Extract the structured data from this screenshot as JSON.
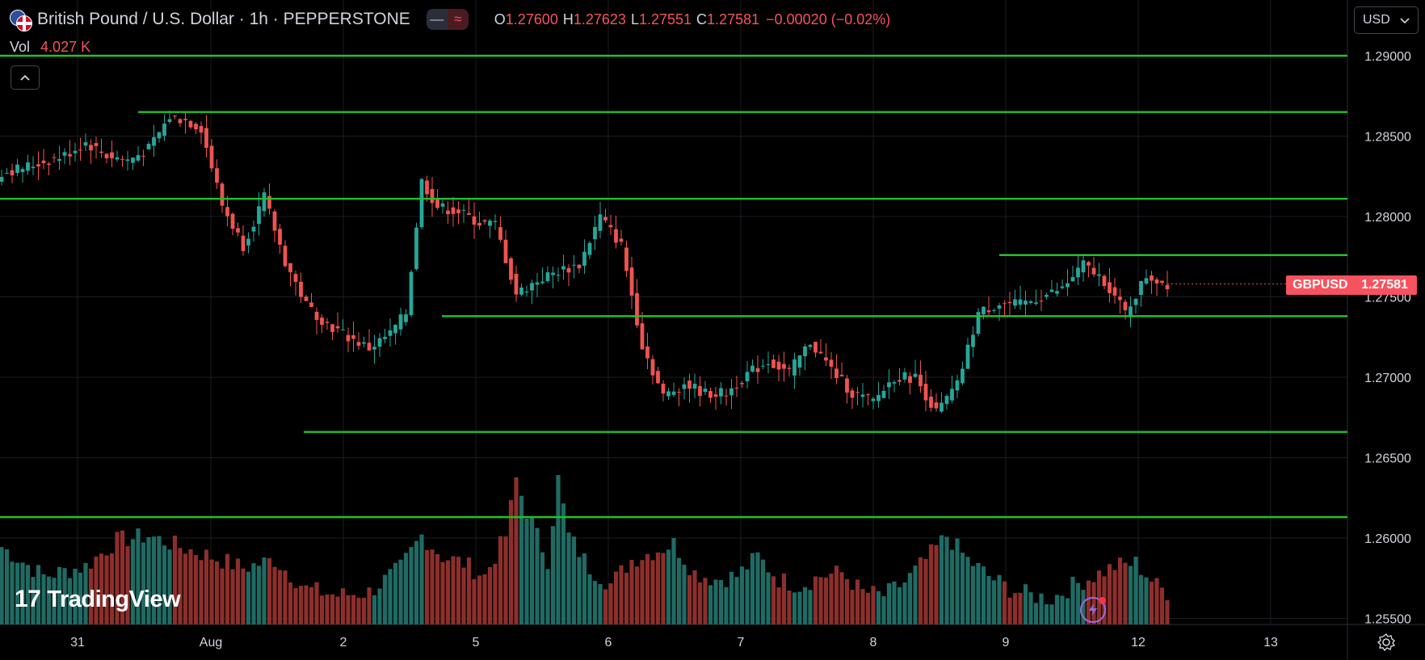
{
  "header": {
    "title": "British Pound / U.S. Dollar · 1h · PEPPERSTONE",
    "toggle_a_icon": "minus-icon",
    "toggle_b_icon": "approx-icon",
    "toggle_b_glyph": "≈",
    "ohlc": {
      "o_label": "O",
      "o_value": "1.27600",
      "h_label": "H",
      "h_value": "1.27623",
      "l_label": "L",
      "l_value": "1.27551",
      "c_label": "C",
      "c_value": "1.27581",
      "change": "−0.00020 (−0.02%)"
    },
    "volume_label": "Vol",
    "volume_value": "4.027 K"
  },
  "currency_selector": {
    "value": "USD"
  },
  "symbol_tag": {
    "symbol": "GBPUSD",
    "price": "1.27581"
  },
  "logo": {
    "text": "TradingView",
    "mark": "17"
  },
  "colors": {
    "up": "#26a69a",
    "down": "#ef5350",
    "vol_up": "#1f6b64",
    "vol_down": "#8c2f2c",
    "level_line": "#22c02c",
    "grid": "#1a1d24",
    "axis_text": "#d1d4dc",
    "price_tag": "#f7525f",
    "flash": "#9c6ade"
  },
  "chart_data": {
    "type": "candlestick",
    "symbol": "GBPUSD",
    "interval": "1h",
    "ylim": [
      1.2545,
      1.2915
    ],
    "y_ticks": [
      "1.29000",
      "1.28500",
      "1.28000",
      "1.27500",
      "1.27000",
      "1.26500",
      "1.26000",
      "1.25500"
    ],
    "x_ticks": [
      "31",
      "Aug",
      "2",
      "5",
      "6",
      "7",
      "8",
      "9",
      "12",
      "13"
    ],
    "last_price": 1.27581,
    "horizontal_levels": [
      1.29,
      1.2865,
      1.2811,
      1.2776,
      1.2738,
      1.2666,
      1.2613
    ],
    "close_path": [
      [
        0,
        1.2827
      ],
      [
        6,
        1.2832
      ],
      [
        12,
        1.2838
      ],
      [
        16,
        1.2846
      ],
      [
        20,
        1.2838
      ],
      [
        24,
        1.2835
      ],
      [
        28,
        1.2842
      ],
      [
        32,
        1.2862
      ],
      [
        35,
        1.286
      ],
      [
        38,
        1.2855
      ],
      [
        42,
        1.2807
      ],
      [
        46,
        1.2782
      ],
      [
        50,
        1.2812
      ],
      [
        54,
        1.2772
      ],
      [
        58,
        1.2745
      ],
      [
        62,
        1.2733
      ],
      [
        66,
        1.2725
      ],
      [
        70,
        1.2718
      ],
      [
        74,
        1.2727
      ],
      [
        77,
        1.274
      ],
      [
        80,
        1.2822
      ],
      [
        83,
        1.2806
      ],
      [
        87,
        1.2803
      ],
      [
        91,
        1.2796
      ],
      [
        94,
        1.2795
      ],
      [
        98,
        1.2752
      ],
      [
        102,
        1.276
      ],
      [
        106,
        1.2766
      ],
      [
        110,
        1.277
      ],
      [
        114,
        1.28
      ],
      [
        118,
        1.2782
      ],
      [
        122,
        1.272
      ],
      [
        126,
        1.2688
      ],
      [
        130,
        1.2696
      ],
      [
        134,
        1.269
      ],
      [
        138,
        1.269
      ],
      [
        142,
        1.2702
      ],
      [
        146,
        1.271
      ],
      [
        150,
        1.2703
      ],
      [
        154,
        1.2722
      ],
      [
        158,
        1.2705
      ],
      [
        162,
        1.269
      ],
      [
        166,
        1.2685
      ],
      [
        170,
        1.27
      ],
      [
        174,
        1.27
      ],
      [
        178,
        1.2678
      ],
      [
        182,
        1.2695
      ],
      [
        186,
        1.274
      ],
      [
        190,
        1.2746
      ],
      [
        194,
        1.2745
      ],
      [
        198,
        1.275
      ],
      [
        202,
        1.2755
      ],
      [
        206,
        1.277
      ],
      [
        210,
        1.276
      ],
      [
        214,
        1.274
      ],
      [
        218,
        1.2763
      ],
      [
        222,
        1.2758
      ]
    ],
    "volume_path": [
      [
        0,
        0.48
      ],
      [
        8,
        0.3
      ],
      [
        16,
        0.36
      ],
      [
        22,
        0.52
      ],
      [
        28,
        0.55
      ],
      [
        34,
        0.48
      ],
      [
        40,
        0.42
      ],
      [
        46,
        0.35
      ],
      [
        52,
        0.4
      ],
      [
        58,
        0.22
      ],
      [
        64,
        0.18
      ],
      [
        70,
        0.2
      ],
      [
        76,
        0.35
      ],
      [
        80,
        0.55
      ],
      [
        84,
        0.42
      ],
      [
        88,
        0.38
      ],
      [
        92,
        0.3
      ],
      [
        96,
        0.55
      ],
      [
        98,
        0.9
      ],
      [
        100,
        0.7
      ],
      [
        104,
        0.4
      ],
      [
        106,
        0.9
      ],
      [
        108,
        0.55
      ],
      [
        112,
        0.35
      ],
      [
        116,
        0.25
      ],
      [
        120,
        0.4
      ],
      [
        124,
        0.45
      ],
      [
        128,
        0.5
      ],
      [
        132,
        0.32
      ],
      [
        136,
        0.28
      ],
      [
        140,
        0.3
      ],
      [
        144,
        0.42
      ],
      [
        148,
        0.28
      ],
      [
        152,
        0.24
      ],
      [
        156,
        0.3
      ],
      [
        160,
        0.32
      ],
      [
        164,
        0.2
      ],
      [
        168,
        0.18
      ],
      [
        172,
        0.26
      ],
      [
        176,
        0.4
      ],
      [
        180,
        0.55
      ],
      [
        184,
        0.4
      ],
      [
        188,
        0.3
      ],
      [
        192,
        0.22
      ],
      [
        196,
        0.18
      ],
      [
        200,
        0.16
      ],
      [
        204,
        0.24
      ],
      [
        208,
        0.3
      ],
      [
        212,
        0.36
      ],
      [
        216,
        0.38
      ],
      [
        220,
        0.24
      ],
      [
        222,
        0.2
      ]
    ]
  }
}
